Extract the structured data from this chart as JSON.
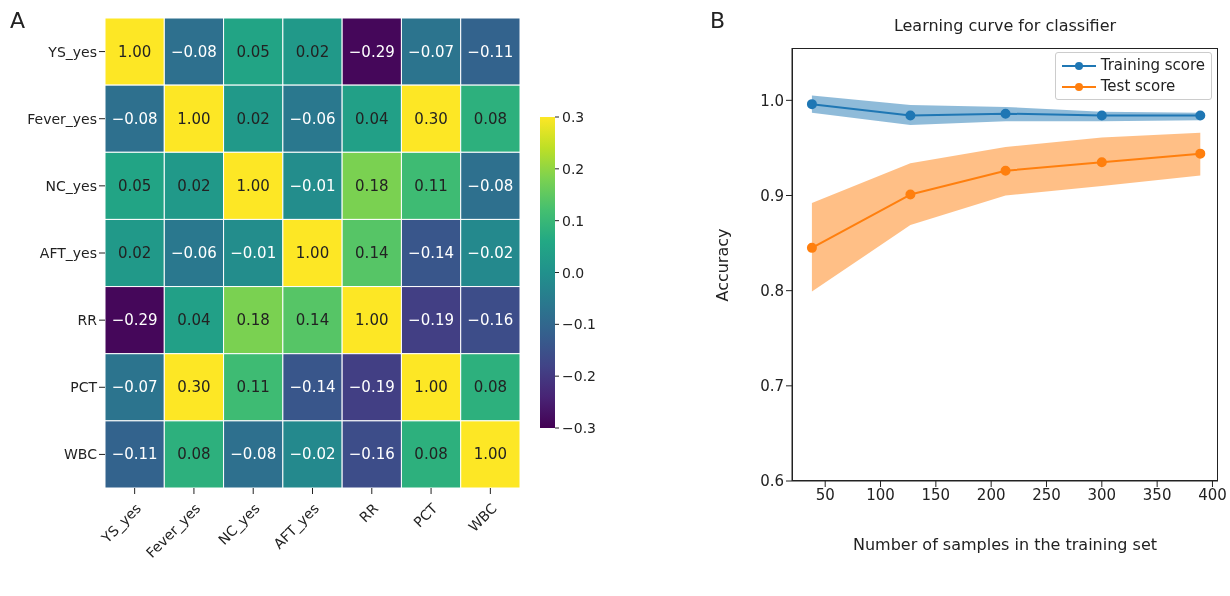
{
  "chart_data": [
    {
      "type": "heatmap",
      "annotations": [
        "A"
      ],
      "categories": [
        "YS_yes",
        "Fever_yes",
        "NC_yes",
        "AFT_yes",
        "RR",
        "PCT",
        "WBC"
      ],
      "y_categories": [
        "YS_yes",
        "Fever_yes",
        "NC_yes",
        "AFT_yes",
        "RR",
        "PCT",
        "WBC"
      ],
      "cells": [
        [
          1.0,
          -0.08,
          0.05,
          0.02,
          -0.29,
          -0.07,
          -0.11
        ],
        [
          -0.08,
          1.0,
          0.02,
          -0.06,
          0.04,
          0.3,
          0.08
        ],
        [
          0.05,
          0.02,
          1.0,
          -0.01,
          0.18,
          0.11,
          -0.08
        ],
        [
          0.02,
          -0.06,
          -0.01,
          1.0,
          0.14,
          -0.14,
          -0.02
        ],
        [
          -0.29,
          0.04,
          0.18,
          0.14,
          1.0,
          -0.19,
          -0.16
        ],
        [
          -0.07,
          0.3,
          0.11,
          -0.14,
          -0.19,
          1.0,
          0.08
        ],
        [
          -0.11,
          0.08,
          -0.08,
          -0.02,
          -0.16,
          0.08,
          1.0
        ]
      ],
      "cell_labels": [
        [
          "1.00",
          "−0.08",
          "0.05",
          "0.02",
          "−0.29",
          "−0.07",
          "−0.11"
        ],
        [
          "−0.08",
          "1.00",
          "0.02",
          "−0.06",
          "0.04",
          "0.30",
          "0.08"
        ],
        [
          "0.05",
          "0.02",
          "1.00",
          "−0.01",
          "0.18",
          "0.11",
          "−0.08"
        ],
        [
          "0.02",
          "−0.06",
          "−0.01",
          "1.00",
          "0.14",
          "−0.14",
          "−0.02"
        ],
        [
          "−0.29",
          "0.04",
          "0.18",
          "0.14",
          "1.00",
          "−0.19",
          "−0.16"
        ],
        [
          "−0.07",
          "0.30",
          "0.11",
          "−0.14",
          "−0.19",
          "1.00",
          "0.08"
        ],
        [
          "−0.11",
          "0.08",
          "−0.08",
          "−0.02",
          "−0.16",
          "0.08",
          "1.00"
        ]
      ],
      "clim": [
        -0.3,
        0.3
      ],
      "cticks": [
        {
          "value": -0.3,
          "label": "−0.3"
        },
        {
          "value": -0.2,
          "label": "−0.2"
        },
        {
          "value": -0.1,
          "label": "−0.1"
        },
        {
          "value": 0,
          "label": "0.0"
        },
        {
          "value": 0.1,
          "label": "0.1"
        },
        {
          "value": 0.2,
          "label": "0.2"
        },
        {
          "value": 0.3,
          "label": "0.3"
        }
      ]
    },
    {
      "type": "line",
      "annotations": [
        "B"
      ],
      "title": "Learning curve for classifier",
      "xlabel": "Number of samples in the training set",
      "ylabel": "Accuracy",
      "x": [
        38,
        127,
        213,
        300,
        389
      ],
      "series": [
        {
          "name": "Training score",
          "color": "#1f77b4",
          "values": [
            0.996,
            0.984,
            0.986,
            0.984,
            0.984
          ],
          "lower": [
            0.987,
            0.974,
            0.978,
            0.978,
            0.979
          ],
          "upper": [
            1.005,
            0.995,
            0.993,
            0.988,
            0.987
          ]
        },
        {
          "name": "Test score",
          "color": "#ff7f0e",
          "values": [
            0.845,
            0.901,
            0.926,
            0.935,
            0.944
          ],
          "lower": [
            0.799,
            0.869,
            0.9,
            0.91,
            0.921
          ],
          "upper": [
            0.892,
            0.934,
            0.951,
            0.961,
            0.966
          ]
        }
      ],
      "xlim": [
        20,
        405
      ],
      "xticks": [
        50,
        100,
        150,
        200,
        250,
        300,
        350,
        400
      ],
      "ylim": [
        0.6,
        1.055
      ],
      "yticks": [
        0.6,
        0.7,
        0.8,
        0.9,
        {
          "value": 1,
          "label": "1.0"
        }
      ],
      "marker": "circle",
      "legend": "top right",
      "grid": false
    }
  ]
}
